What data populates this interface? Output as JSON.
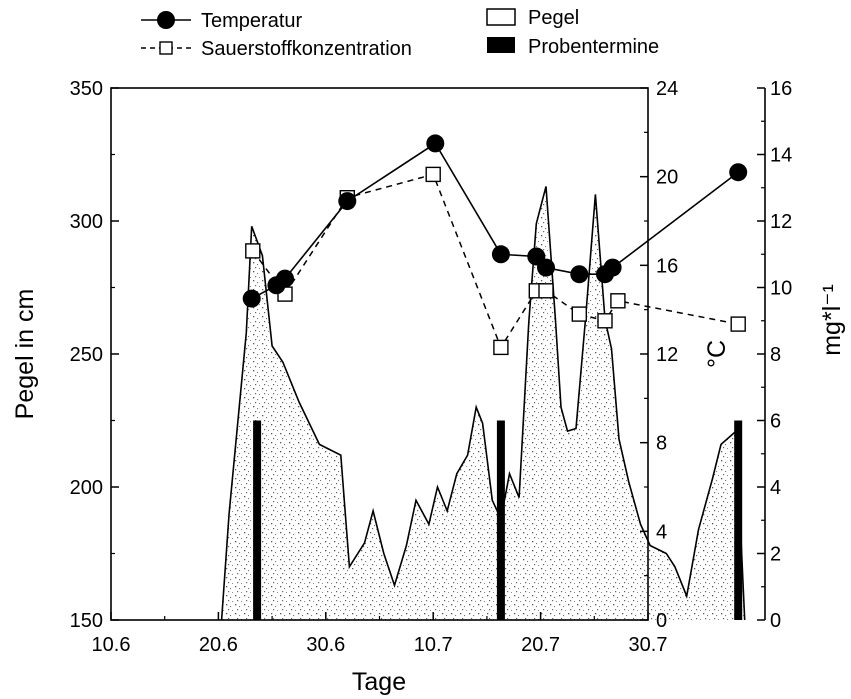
{
  "chart_data": {
    "type": "line",
    "xlabel": "Tage",
    "x_ticks": [
      "10.6",
      "20.6",
      "30.6",
      "10.7",
      "20.7",
      "30.7"
    ],
    "x_tick_days": [
      0,
      10,
      20,
      30,
      40,
      50
    ],
    "xlim_days": [
      0,
      50
    ],
    "left_axis": {
      "label": "Pegel in cm",
      "ylim": [
        150,
        350
      ],
      "ticks": [
        150,
        200,
        250,
        300,
        350
      ]
    },
    "temp_axis": {
      "label": "°C",
      "ylim": [
        0,
        24
      ],
      "ticks": [
        0,
        4,
        8,
        12,
        16,
        20,
        24
      ]
    },
    "oxygen_axis": {
      "label": "mg*l⁻¹",
      "ylim": [
        0,
        16
      ],
      "ticks": [
        0,
        2,
        4,
        6,
        8,
        10,
        12,
        14,
        16
      ]
    },
    "legend": {
      "temperature": "Temperatur",
      "oxygen": "Sauerstoffkonzentration",
      "level": "Pegel",
      "sampling": "Probentermine"
    },
    "series": [
      {
        "name": "Temperatur",
        "axis": "temp",
        "x": [
          13.1,
          15.4,
          16.2,
          22.0,
          30.2,
          36.3,
          39.6,
          40.5,
          43.6,
          46.0,
          46.7,
          58.4
        ],
        "y": [
          14.5,
          15.1,
          15.4,
          18.9,
          21.5,
          16.5,
          16.4,
          15.9,
          15.6,
          15.6,
          15.9,
          20.2
        ]
      },
      {
        "name": "Sauerstoffkonzentration",
        "axis": "oxygen",
        "x": [
          13.2,
          16.2,
          22.0,
          30.0,
          36.3,
          39.6,
          40.5,
          43.6,
          46.0,
          47.2,
          58.4
        ],
        "y": [
          11.1,
          9.8,
          12.7,
          13.4,
          8.2,
          9.9,
          9.9,
          9.2,
          9.0,
          9.6,
          8.9
        ]
      },
      {
        "name": "Pegel",
        "axis": "left",
        "x": [
          10.3,
          11.0,
          12.6,
          13.1,
          14.1,
          15.0,
          16.0,
          17.5,
          19.4,
          21.4,
          22.2,
          23.6,
          24.4,
          25.4,
          26.4,
          27.5,
          28.4,
          29.6,
          30.4,
          31.3,
          32.2,
          33.2,
          34.0,
          34.6,
          35.5,
          36.3,
          37.1,
          38.0,
          38.9,
          39.6,
          40.5,
          41.4,
          41.9,
          42.5,
          43.3,
          44.2,
          45.1,
          46.0,
          46.6,
          47.3,
          48.2,
          49.3,
          50.2,
          51.7,
          52.5,
          53.6,
          54.7,
          56.0,
          56.8,
          58.2,
          59.0
        ],
        "y": [
          150,
          190,
          258,
          298,
          287,
          253,
          247,
          232,
          216,
          212,
          170,
          179,
          191,
          175,
          163,
          178,
          195,
          186,
          200,
          191,
          205,
          212,
          230,
          224,
          195,
          188,
          205,
          196,
          262,
          299,
          313,
          262,
          230,
          221,
          222,
          264,
          310,
          263,
          252,
          218,
          202,
          186,
          178,
          175,
          170,
          159,
          184,
          203,
          216,
          221,
          150
        ]
      }
    ],
    "sampling_days": [
      13.6,
      36.3,
      58.4
    ],
    "sampling_value": 225
  },
  "colors": {
    "line": "#000000",
    "fill_dot": "#6a6a6a",
    "background": "#ffffff"
  }
}
